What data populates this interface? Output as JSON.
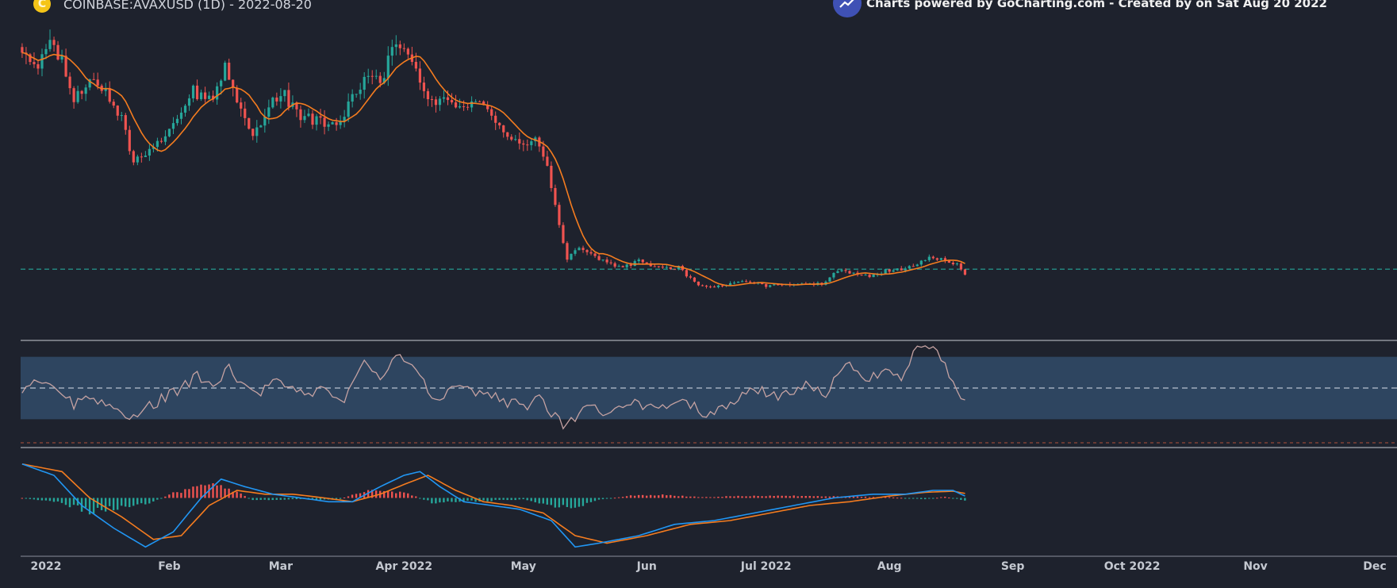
{
  "header": {
    "symbol_title": "COINBASE:AVAXUSD (1D) - 2022-08-20",
    "coin_icon": "avax-coin-icon",
    "coin_glyph": "C",
    "credit": "Charts powered by GoCharting.com - Created by  on Sat Aug 20 2022",
    "credit_icon": "gocharting-logo-icon"
  },
  "colors": {
    "background": "#1e222d",
    "up_candle": "#26a69a",
    "down_candle": "#ef5350",
    "ma_line": "#f57c1f",
    "reference_line": "#26a69a",
    "rsi_line": "#c5a2a2",
    "rsi_band": "#2e4560",
    "macd_line": "#2196f3",
    "signal_line": "#f57c1f",
    "coin_icon": "#f5c518",
    "credit_logo": "#3f51b5"
  },
  "x_axis": {
    "ticks": [
      "2022",
      "Feb",
      "Mar",
      "Apr 2022",
      "May",
      "Jun",
      "Jul 2022",
      "Aug",
      "Sep",
      "Oct 2022",
      "Nov",
      "Dec"
    ]
  },
  "chart_data": [
    {
      "type": "candlestick",
      "panel": "price",
      "symbol": "COINBASE:AVAXUSD",
      "interval": "1D",
      "x_range": [
        "2021-12-25",
        "2022-12-31"
      ],
      "data_range": [
        "2021-12-26",
        "2022-08-20"
      ],
      "price_anchors": [
        [
          "2021-12-26",
          96
        ],
        [
          "2021-12-30",
          90
        ],
        [
          "2022-01-02",
          99
        ],
        [
          "2022-01-05",
          91
        ],
        [
          "2022-01-08",
          78
        ],
        [
          "2022-01-12",
          85
        ],
        [
          "2022-01-16",
          82
        ],
        [
          "2022-01-20",
          73
        ],
        [
          "2022-01-23",
          58
        ],
        [
          "2022-01-26",
          62
        ],
        [
          "2022-01-30",
          66
        ],
        [
          "2022-02-03",
          72
        ],
        [
          "2022-02-07",
          82
        ],
        [
          "2022-02-10",
          79
        ],
        [
          "2022-02-12",
          80
        ],
        [
          "2022-02-15",
          90
        ],
        [
          "2022-02-18",
          78
        ],
        [
          "2022-02-22",
          68
        ],
        [
          "2022-02-26",
          76
        ],
        [
          "2022-03-01",
          82
        ],
        [
          "2022-03-05",
          74
        ],
        [
          "2022-03-10",
          72
        ],
        [
          "2022-03-15",
          70
        ],
        [
          "2022-03-17",
          74
        ],
        [
          "2022-03-22",
          86
        ],
        [
          "2022-03-26",
          84
        ],
        [
          "2022-03-29",
          96
        ],
        [
          "2022-04-02",
          94
        ],
        [
          "2022-04-06",
          80
        ],
        [
          "2022-04-10",
          78
        ],
        [
          "2022-04-14",
          77
        ],
        [
          "2022-04-20",
          77
        ],
        [
          "2022-04-25",
          70
        ],
        [
          "2022-04-29",
          66
        ],
        [
          "2022-05-01",
          64
        ],
        [
          "2022-05-04",
          68
        ],
        [
          "2022-05-07",
          56
        ],
        [
          "2022-05-10",
          38
        ],
        [
          "2022-05-12",
          27
        ],
        [
          "2022-05-15",
          30
        ],
        [
          "2022-05-20",
          27
        ],
        [
          "2022-05-25",
          24
        ],
        [
          "2022-05-30",
          26
        ],
        [
          "2022-06-04",
          24
        ],
        [
          "2022-06-09",
          24
        ],
        [
          "2022-06-13",
          19
        ],
        [
          "2022-06-18",
          17.5
        ],
        [
          "2022-06-22",
          19
        ],
        [
          "2022-06-26",
          19.5
        ],
        [
          "2022-07-01",
          18
        ],
        [
          "2022-07-05",
          18.5
        ],
        [
          "2022-07-10",
          19
        ],
        [
          "2022-07-15",
          18.5
        ],
        [
          "2022-07-19",
          23
        ],
        [
          "2022-07-24",
          22
        ],
        [
          "2022-07-27",
          21
        ],
        [
          "2022-07-31",
          23
        ],
        [
          "2022-08-05",
          23.5
        ],
        [
          "2022-08-10",
          27
        ],
        [
          "2022-08-15",
          26.5
        ],
        [
          "2022-08-18",
          25
        ],
        [
          "2022-08-20",
          22
        ]
      ],
      "moving_average": "orange line",
      "reference_line": {
        "value": 23.5,
        "style": "dashed"
      }
    },
    {
      "type": "line",
      "panel": "rsi",
      "series": [
        {
          "values": [
            [
              "2021-12-26",
              50
            ],
            [
              "2021-12-30",
              56
            ],
            [
              "2022-01-04",
              48
            ],
            [
              "2022-01-08",
              40
            ],
            [
              "2022-01-12",
              45
            ],
            [
              "2022-01-18",
              37
            ],
            [
              "2022-01-22",
              32
            ],
            [
              "2022-01-28",
              40
            ],
            [
              "2022-02-03",
              48
            ],
            [
              "2022-02-08",
              58
            ],
            [
              "2022-02-12",
              50
            ],
            [
              "2022-02-16",
              62
            ],
            [
              "2022-02-22",
              45
            ],
            [
              "2022-02-28",
              55
            ],
            [
              "2022-03-05",
              46
            ],
            [
              "2022-03-12",
              48
            ],
            [
              "2022-03-17",
              42
            ],
            [
              "2022-03-22",
              65
            ],
            [
              "2022-03-26",
              57
            ],
            [
              "2022-03-30",
              72
            ],
            [
              "2022-04-03",
              68
            ],
            [
              "2022-04-08",
              42
            ],
            [
              "2022-04-15",
              50
            ],
            [
              "2022-04-22",
              46
            ],
            [
              "2022-04-28",
              40
            ],
            [
              "2022-05-02",
              38
            ],
            [
              "2022-05-05",
              45
            ],
            [
              "2022-05-09",
              31
            ],
            [
              "2022-05-12",
              24
            ],
            [
              "2022-05-16",
              40
            ],
            [
              "2022-05-22",
              34
            ],
            [
              "2022-05-28",
              40
            ],
            [
              "2022-06-03",
              37
            ],
            [
              "2022-06-10",
              44
            ],
            [
              "2022-06-16",
              31
            ],
            [
              "2022-06-22",
              40
            ],
            [
              "2022-06-28",
              50
            ],
            [
              "2022-07-04",
              44
            ],
            [
              "2022-07-10",
              52
            ],
            [
              "2022-07-16",
              46
            ],
            [
              "2022-07-21",
              68
            ],
            [
              "2022-07-26",
              55
            ],
            [
              "2022-07-31",
              62
            ],
            [
              "2022-08-04",
              57
            ],
            [
              "2022-08-08",
              77
            ],
            [
              "2022-08-12",
              76
            ],
            [
              "2022-08-16",
              60
            ],
            [
              "2022-08-20",
              40
            ]
          ]
        }
      ],
      "ylim": [
        20,
        80
      ],
      "band": [
        30,
        70
      ],
      "midline": 50
    },
    {
      "type": "line+bar",
      "panel": "macd",
      "series": [
        {
          "values": [
            [
              "2021-12-26",
              9
            ],
            [
              "2022-01-03",
              6
            ],
            [
              "2022-01-10",
              -2
            ],
            [
              "2022-01-18",
              -8
            ],
            [
              "2022-01-26",
              -13
            ],
            [
              "2022-02-02",
              -9
            ],
            [
              "2022-02-09",
              0
            ],
            [
              "2022-02-14",
              5
            ],
            [
              "2022-02-20",
              3
            ],
            [
              "2022-02-27",
              1
            ],
            [
              "2022-03-06",
              0
            ],
            [
              "2022-03-13",
              -1
            ],
            [
              "2022-03-19",
              -1
            ],
            [
              "2022-03-26",
              3
            ],
            [
              "2022-04-01",
              6
            ],
            [
              "2022-04-05",
              7
            ],
            [
              "2022-04-10",
              3
            ],
            [
              "2022-04-16",
              -1
            ],
            [
              "2022-04-23",
              -2
            ],
            [
              "2022-04-30",
              -3
            ],
            [
              "2022-05-08",
              -6
            ],
            [
              "2022-05-14",
              -13
            ],
            [
              "2022-05-20",
              -12
            ],
            [
              "2022-05-30",
              -10
            ],
            [
              "2022-06-08",
              -7
            ],
            [
              "2022-06-18",
              -6
            ],
            [
              "2022-06-28",
              -4
            ],
            [
              "2022-07-08",
              -2
            ],
            [
              "2022-07-18",
              0
            ],
            [
              "2022-07-28",
              1
            ],
            [
              "2022-08-05",
              1
            ],
            [
              "2022-08-12",
              2
            ],
            [
              "2022-08-17",
              2
            ],
            [
              "2022-08-20",
              0.5
            ]
          ]
        },
        {
          "values": [
            [
              "2021-12-26",
              9
            ],
            [
              "2022-01-05",
              7
            ],
            [
              "2022-01-12",
              0
            ],
            [
              "2022-01-20",
              -5
            ],
            [
              "2022-01-28",
              -11
            ],
            [
              "2022-02-04",
              -10
            ],
            [
              "2022-02-11",
              -2
            ],
            [
              "2022-02-18",
              2
            ],
            [
              "2022-02-25",
              1
            ],
            [
              "2022-03-04",
              1
            ],
            [
              "2022-03-12",
              0
            ],
            [
              "2022-03-19",
              -1
            ],
            [
              "2022-03-26",
              1
            ],
            [
              "2022-04-02",
              4
            ],
            [
              "2022-04-07",
              6
            ],
            [
              "2022-04-14",
              2
            ],
            [
              "2022-04-21",
              -1
            ],
            [
              "2022-04-28",
              -2
            ],
            [
              "2022-05-06",
              -4
            ],
            [
              "2022-05-14",
              -10
            ],
            [
              "2022-05-22",
              -12
            ],
            [
              "2022-06-01",
              -10
            ],
            [
              "2022-06-12",
              -7
            ],
            [
              "2022-06-22",
              -6
            ],
            [
              "2022-07-02",
              -4
            ],
            [
              "2022-07-12",
              -2
            ],
            [
              "2022-07-22",
              -1
            ],
            [
              "2022-08-01",
              0.5
            ],
            [
              "2022-08-10",
              1.5
            ],
            [
              "2022-08-17",
              1.8
            ],
            [
              "2022-08-20",
              1.2
            ]
          ]
        }
      ],
      "histogram_anchors": [
        [
          "2021-12-26",
          0
        ],
        [
          "2022-01-04",
          -1.2
        ],
        [
          "2022-01-12",
          -3.5
        ],
        [
          "2022-01-20",
          -2.5
        ],
        [
          "2022-01-28",
          -1
        ],
        [
          "2022-02-02",
          1.2
        ],
        [
          "2022-02-10",
          3.5
        ],
        [
          "2022-02-16",
          2.5
        ],
        [
          "2022-02-22",
          -0.6
        ],
        [
          "2022-03-05",
          -0.3
        ],
        [
          "2022-03-15",
          -0.6
        ],
        [
          "2022-03-22",
          1.8
        ],
        [
          "2022-04-01",
          1.5
        ],
        [
          "2022-04-08",
          -1.2
        ],
        [
          "2022-04-20",
          -0.8
        ],
        [
          "2022-05-01",
          -0.4
        ],
        [
          "2022-05-08",
          -2
        ],
        [
          "2022-05-15",
          -2.5
        ],
        [
          "2022-05-20",
          -0.5
        ],
        [
          "2022-05-28",
          0.6
        ],
        [
          "2022-06-05",
          0.8
        ],
        [
          "2022-06-15",
          0.2
        ],
        [
          "2022-06-25",
          0.5
        ],
        [
          "2022-07-05",
          0.6
        ],
        [
          "2022-07-20",
          0.4
        ],
        [
          "2022-08-01",
          0.2
        ],
        [
          "2022-08-10",
          -0.3
        ],
        [
          "2022-08-15",
          0.3
        ],
        [
          "2022-08-20",
          -0.6
        ]
      ],
      "ylim": [
        -14,
        10
      ]
    }
  ]
}
